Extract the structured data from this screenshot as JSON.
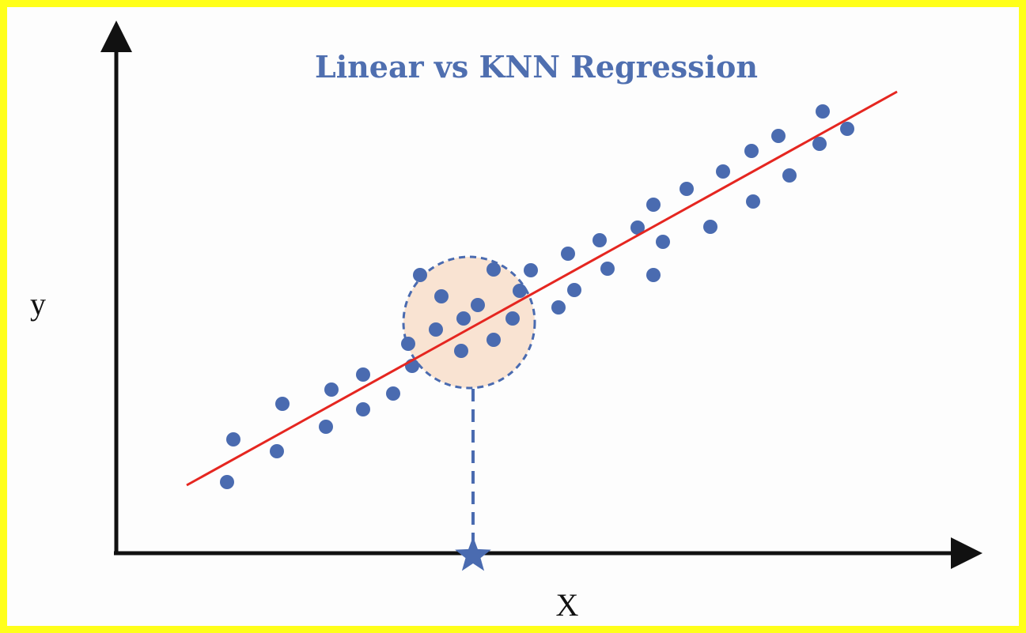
{
  "title": "Linear vs KNN Regression",
  "x_axis_label": "X",
  "y_axis_label": "y",
  "colors": {
    "frame": "#ffff1a",
    "background": "#fdfdfd",
    "points": "#4a6bb0",
    "regression_line": "#e52620",
    "neighborhood_fill": "#f9e3d2",
    "neighborhood_stroke": "#4a6bb0",
    "axes": "#111111",
    "title": "#4f6fb0"
  },
  "icons": {
    "query_point": "star-icon"
  }
}
